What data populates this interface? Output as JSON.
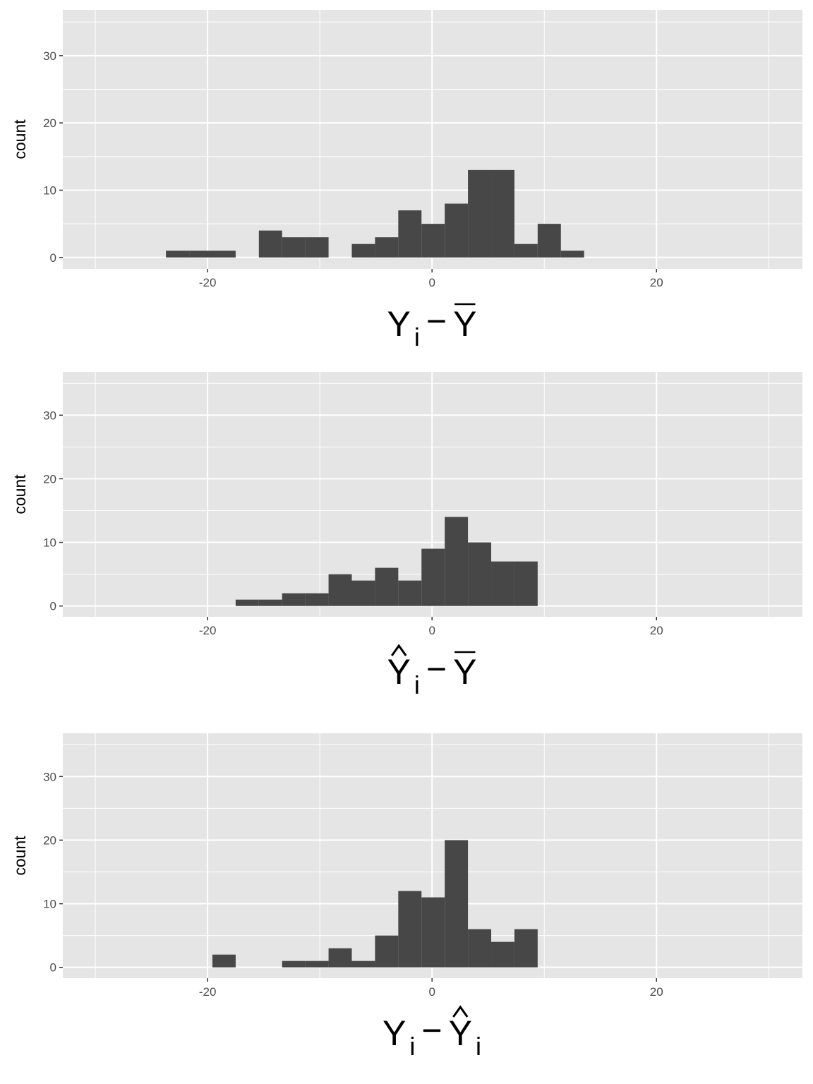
{
  "chart_data": [
    {
      "type": "histogram",
      "xlabel": {
        "main": "Y",
        "sub": "i",
        "op": "−",
        "rhs": "Y",
        "main_accent": "",
        "rhs_accent": "bar",
        "rhs_sub": ""
      },
      "ylabel": "count",
      "xlim": [
        -32.9,
        33.0
      ],
      "ylim": [
        -1.7,
        36.8
      ],
      "xticks": [
        -20,
        0,
        20
      ],
      "yticks": [
        0,
        10,
        20,
        30
      ],
      "grid": true,
      "bar_color": "#474747",
      "panel_bg": "#e5e5e5",
      "bin_edges": [
        -23.71,
        -21.64,
        -19.57,
        -17.5,
        -15.43,
        -13.36,
        -11.29,
        -9.22,
        -7.15,
        -5.08,
        -3.01,
        -0.94,
        1.13,
        3.2,
        5.27,
        7.34,
        9.41,
        11.48,
        13.55
      ],
      "counts": [
        1,
        1,
        1,
        0,
        4,
        3,
        3,
        0,
        2,
        3,
        7,
        5,
        8,
        13,
        13,
        2,
        5,
        1
      ]
    },
    {
      "type": "histogram",
      "xlabel": {
        "main": "Y",
        "sub": "i",
        "op": "−",
        "rhs": "Y",
        "main_accent": "hat",
        "rhs_accent": "bar",
        "rhs_sub": ""
      },
      "ylabel": "count",
      "xlim": [
        -32.9,
        33.0
      ],
      "ylim": [
        -1.7,
        36.8
      ],
      "xticks": [
        -20,
        0,
        20
      ],
      "yticks": [
        0,
        10,
        20,
        30
      ],
      "grid": true,
      "bar_color": "#474747",
      "panel_bg": "#e5e5e5",
      "bin_edges": [
        -23.71,
        -21.64,
        -19.57,
        -17.5,
        -15.43,
        -13.36,
        -11.29,
        -9.22,
        -7.15,
        -5.08,
        -3.01,
        -0.94,
        1.13,
        3.2,
        5.27,
        7.34,
        9.41,
        11.48,
        13.55
      ],
      "counts": [
        0,
        0,
        0,
        1,
        1,
        2,
        2,
        5,
        4,
        6,
        4,
        9,
        14,
        10,
        7,
        7,
        0,
        0
      ]
    },
    {
      "type": "histogram",
      "xlabel": {
        "main": "Y",
        "sub": "i",
        "op": "−",
        "rhs": "Y",
        "main_accent": "",
        "rhs_accent": "hat",
        "rhs_sub": "i"
      },
      "ylabel": "count",
      "xlim": [
        -32.9,
        33.0
      ],
      "ylim": [
        -1.7,
        36.8
      ],
      "xticks": [
        -20,
        0,
        20
      ],
      "yticks": [
        0,
        10,
        20,
        30
      ],
      "grid": true,
      "bar_color": "#474747",
      "panel_bg": "#e5e5e5",
      "bin_edges": [
        -23.71,
        -21.64,
        -19.57,
        -17.5,
        -15.43,
        -13.36,
        -11.29,
        -9.22,
        -7.15,
        -5.08,
        -3.01,
        -0.94,
        1.13,
        3.2,
        5.27,
        7.34,
        9.41,
        11.48,
        13.55
      ],
      "counts": [
        0,
        0,
        2,
        0,
        0,
        1,
        1,
        3,
        1,
        5,
        12,
        11,
        20,
        6,
        4,
        6,
        0,
        0
      ]
    }
  ]
}
